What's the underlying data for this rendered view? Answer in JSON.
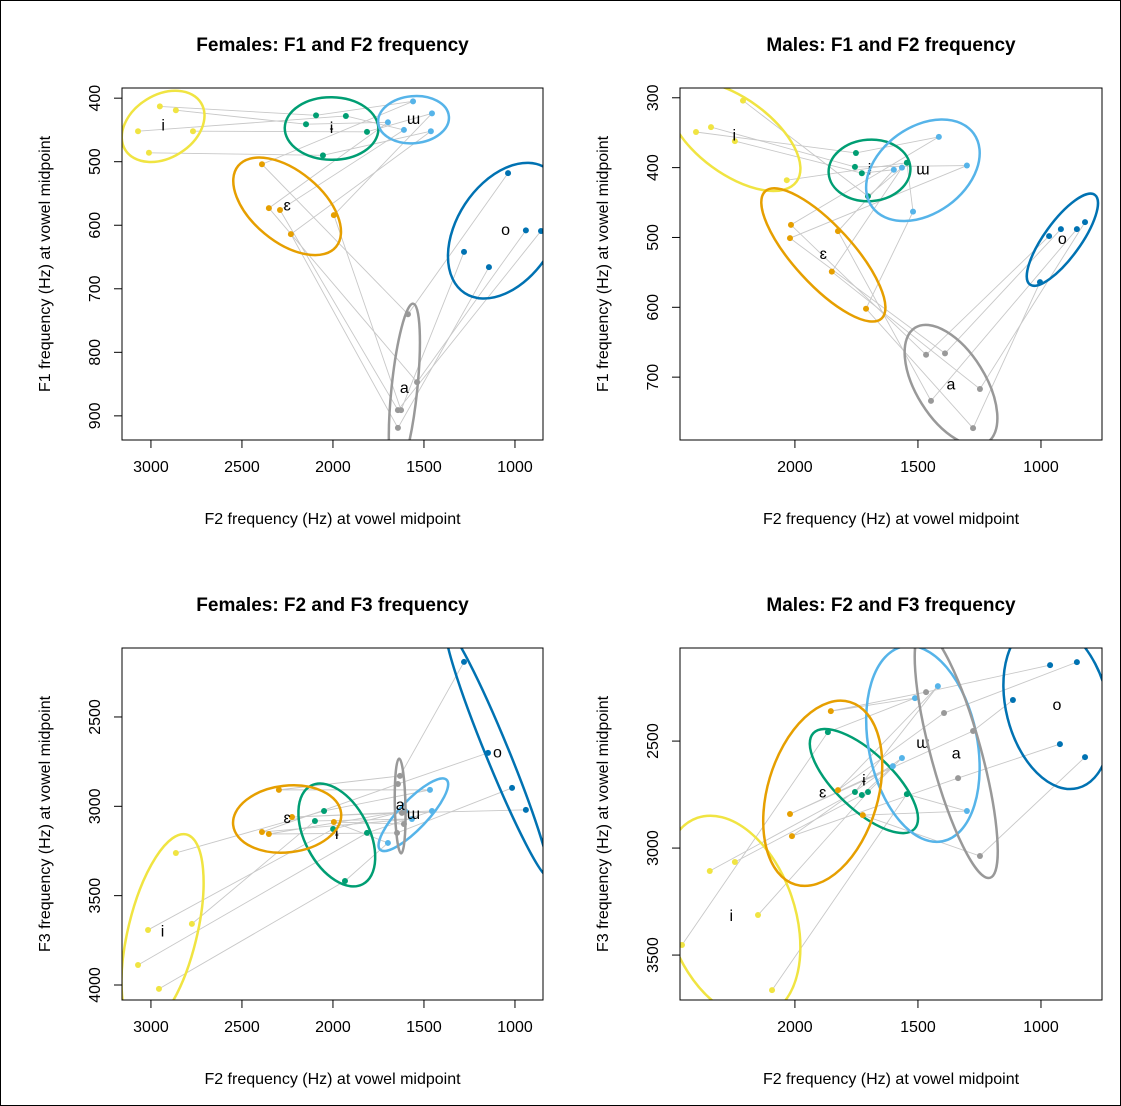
{
  "chart_data": [
    {
      "type": "scatter",
      "title": "Females: F1 and F2 frequency",
      "x_label": "F2 frequency (Hz) at vowel midpoint",
      "y_label": "F1 frequency (Hz) at vowel midpoint",
      "xlim": [
        3159,
        846
      ],
      "ylim": [
        938,
        384
      ],
      "xticks": [
        3000,
        2500,
        2000,
        1500,
        1000
      ],
      "yticks": [
        400,
        500,
        600,
        700,
        800,
        900
      ],
      "series": [
        {
          "name": "i",
          "color": "#f0e442",
          "x": [
            2951,
            2863,
            3071,
            2769,
            3011
          ],
          "values": [
            413,
            419,
            452,
            452,
            486
          ]
        },
        {
          "name": "ɨ",
          "color": "#009e73",
          "x": [
            2093,
            2148,
            1929,
            1813,
            2055
          ],
          "values": [
            427,
            441,
            428,
            453,
            490
          ]
        },
        {
          "name": "ɯ",
          "color": "#56b4e9",
          "x": [
            1560,
            1698,
            1610,
            1456,
            1462
          ],
          "values": [
            405,
            438,
            450,
            424,
            452
          ]
        },
        {
          "name": "ɛ",
          "color": "#e69f00",
          "x": [
            2390,
            2352,
            2291,
            1995,
            2231
          ],
          "values": [
            504,
            573,
            576,
            584,
            614
          ]
        },
        {
          "name": "a",
          "color": "#999999",
          "x": [
            1588,
            1538,
            1643,
            1626,
            1643
          ],
          "values": [
            740,
            847,
            891,
            891,
            919
          ]
        },
        {
          "name": "o",
          "color": "#0072b2",
          "x": [
            1038,
            940,
            857,
            1280,
            1143
          ],
          "values": [
            518,
            608,
            609,
            642,
            666
          ]
        }
      ]
    },
    {
      "type": "scatter",
      "title": "Males: F1 and F2 frequency",
      "x_label": "F2 frequency (Hz) at vowel midpoint",
      "y_label": "F1 frequency (Hz) at vowel midpoint",
      "xlim": [
        2467,
        752
      ],
      "ylim": [
        790,
        286
      ],
      "xticks": [
        2000,
        1500,
        1000
      ],
      "yticks": [
        300,
        400,
        500,
        600,
        700
      ],
      "series": [
        {
          "name": "i",
          "color": "#f0e442",
          "x": [
            2402,
            2341,
            2244,
            2211,
            2033
          ],
          "values": [
            349,
            342,
            362,
            304,
            418
          ]
        },
        {
          "name": "ɨ",
          "color": "#009e73",
          "x": [
            1752,
            1756,
            1728,
            1703,
            1545
          ],
          "values": [
            379,
            399,
            408,
            441,
            393
          ]
        },
        {
          "name": "ɯ",
          "color": "#56b4e9",
          "x": [
            1415,
            1301,
            1598,
            1565,
            1520
          ],
          "values": [
            356,
            397,
            403,
            400,
            463
          ]
        },
        {
          "name": "ɛ",
          "color": "#e69f00",
          "x": [
            2016,
            2020,
            1825,
            1850,
            1711
          ],
          "values": [
            482,
            501,
            491,
            549,
            602
          ]
        },
        {
          "name": "a",
          "color": "#999999",
          "x": [
            1467,
            1390,
            1447,
            1248,
            1276
          ],
          "values": [
            668,
            666,
            734,
            717,
            773
          ]
        },
        {
          "name": "o",
          "color": "#0072b2",
          "x": [
            967,
            919,
            854,
            821,
            1004
          ],
          "values": [
            498,
            488,
            488,
            478,
            564
          ]
        }
      ]
    },
    {
      "type": "scatter",
      "title": "Females: F2 and F3 frequency",
      "x_label": "F2 frequency (Hz) at vowel midpoint",
      "y_label": "F3 frequency (Hz) at vowel midpoint",
      "xlim": [
        3159,
        846
      ],
      "ylim": [
        4084,
        2114
      ],
      "xticks": [
        3000,
        2500,
        2000,
        1500,
        1000
      ],
      "yticks": [
        2500,
        3000,
        3500,
        4000
      ],
      "series": [
        {
          "name": "i",
          "color": "#f0e442",
          "x": [
            2863,
            2775,
            3016,
            3071,
            2956
          ],
          "values": [
            3261,
            3658,
            3692,
            3888,
            4022
          ]
        },
        {
          "name": "ɨ",
          "color": "#009e73",
          "x": [
            2049,
            2099,
            1999,
            1813,
            1934
          ],
          "values": [
            3026,
            3082,
            3127,
            3149,
            3418
          ]
        },
        {
          "name": "ɯ",
          "color": "#56b4e9",
          "x": [
            1467,
            1566,
            1604,
            1456,
            1698
          ],
          "values": [
            2908,
            3071,
            3026,
            3026,
            3205
          ]
        },
        {
          "name": "ɛ",
          "color": "#e69f00",
          "x": [
            2297,
            2390,
            2352,
            2225,
            1995
          ],
          "values": [
            2908,
            3144,
            3155,
            3060,
            3088
          ]
        },
        {
          "name": "a",
          "color": "#999999",
          "x": [
            1632,
            1643,
            1648,
            1621,
            1610
          ],
          "values": [
            2830,
            2875,
            3149,
            3037,
            3099
          ]
        },
        {
          "name": "o",
          "color": "#0072b2",
          "x": [
            1280,
            1148,
            1016,
            940
          ],
          "values": [
            2192,
            2701,
            2897,
            3020
          ]
        }
      ]
    },
    {
      "type": "scatter",
      "title": "Males: F2 and F3 frequency",
      "x_label": "F2 frequency (Hz) at vowel midpoint",
      "y_label": "F3 frequency (Hz) at vowel midpoint",
      "xlim": [
        2467,
        752
      ],
      "ylim": [
        3710,
        2065
      ],
      "xticks": [
        2000,
        1500,
        1000
      ],
      "yticks": [
        2500,
        3000,
        3500
      ],
      "series": [
        {
          "name": "i",
          "color": "#f0e442",
          "x": [
            2459,
            2346,
            2244,
            2150,
            2093
          ],
          "values": [
            3453,
            3107,
            3065,
            3313,
            3664
          ]
        },
        {
          "name": "ɨ",
          "color": "#009e73",
          "x": [
            1866,
            1756,
            1728,
            1703,
            1545
          ],
          "values": [
            2458,
            2738,
            2752,
            2738,
            2748
          ]
        },
        {
          "name": "ɯ",
          "color": "#56b4e9",
          "x": [
            1512,
            1419,
            1602,
            1565,
            1301
          ],
          "values": [
            2299,
            2243,
            2617,
            2579,
            2827
          ]
        },
        {
          "name": "ɛ",
          "color": "#e69f00",
          "x": [
            1854,
            1825,
            2020,
            2012,
            1724
          ],
          "values": [
            2360,
            2729,
            2841,
            2944,
            2846
          ]
        },
        {
          "name": "a",
          "color": "#999999",
          "x": [
            1467,
            1394,
            1276,
            1337,
            1248
          ],
          "values": [
            2271,
            2369,
            2453,
            2673,
            3037
          ]
        },
        {
          "name": "o",
          "color": "#0072b2",
          "x": [
            963,
            854,
            1114,
            923,
            821
          ],
          "values": [
            2145,
            2131,
            2308,
            2514,
            2575
          ]
        }
      ]
    }
  ]
}
